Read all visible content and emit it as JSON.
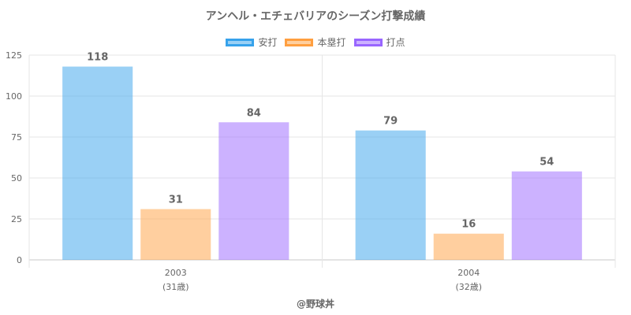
{
  "chart_data": {
    "type": "bar",
    "title": "アンヘル・エチェバリアのシーズン打撃成績",
    "categories": [
      "2003",
      "2004"
    ],
    "category_sublabels": [
      "(31歳)",
      "(32歳)"
    ],
    "series": [
      {
        "name": "安打",
        "values": [
          118,
          79
        ],
        "color": "#36a2eb"
      },
      {
        "name": "本塁打",
        "values": [
          31,
          16
        ],
        "color": "#ff9f40"
      },
      {
        "name": "打点",
        "values": [
          84,
          54
        ],
        "color": "#9966ff"
      }
    ],
    "ylim": [
      0,
      125
    ],
    "yticks": [
      0,
      25,
      50,
      75,
      100,
      125
    ],
    "grid": true,
    "legend_position": "top",
    "credit": "@野球丼"
  }
}
